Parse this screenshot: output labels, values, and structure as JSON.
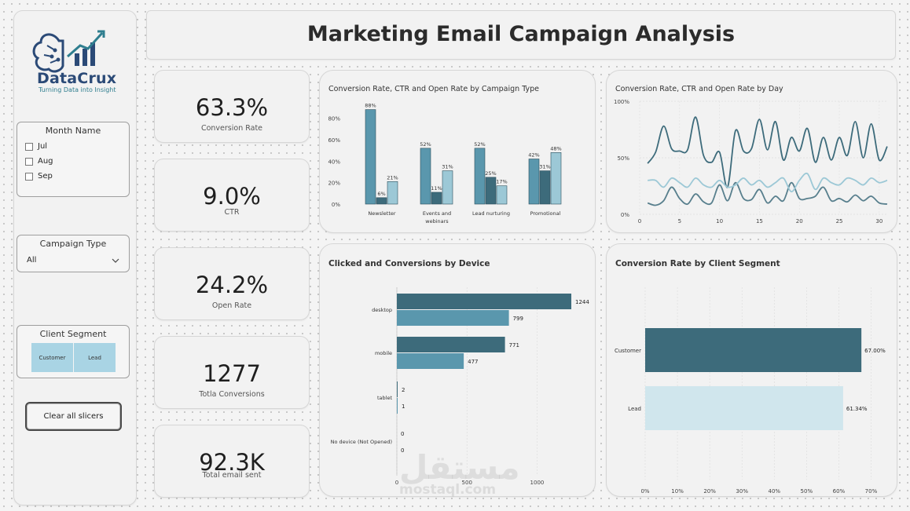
{
  "brand": {
    "name": "DataCrux",
    "tagline": "Turning Data into Insight",
    "logo_icon": "brain-growth-chart-icon"
  },
  "page_title": "Marketing Email Campaign Analysis",
  "colors": {
    "dark": "#3d6b7b",
    "mid": "#5a97ad",
    "light": "#9cc8d6",
    "pale": "#d0e6ed",
    "tile": "#a9d4e4"
  },
  "slicers": {
    "month": {
      "title": "Month Name",
      "options": [
        "Jul",
        "Aug",
        "Sep"
      ]
    },
    "campaign": {
      "title": "Campaign Type",
      "selected": "All"
    },
    "segment": {
      "title": "Client Segment",
      "options": [
        "Customer",
        "Lead"
      ]
    },
    "clear_label": "Clear all slicers"
  },
  "kpis": [
    {
      "value": "63.3%",
      "label": "Conversion Rate"
    },
    {
      "value": "9.0%",
      "label": "CTR"
    },
    {
      "value": "24.2%",
      "label": "Open Rate"
    },
    {
      "value": "1277",
      "label": "Totla Conversions"
    },
    {
      "value": "92.3K",
      "label": "Total email sent"
    }
  ],
  "charts": {
    "campaign": {
      "title": "Conversion Rate, CTR and Open Rate by Campaign Type"
    },
    "daily": {
      "title": "Conversion Rate, CTR and Open Rate by Day"
    },
    "device": {
      "title": "Clicked and Conversions by Device"
    },
    "segment": {
      "title": "Conversion Rate by Client Segment"
    }
  },
  "chart_data": [
    {
      "type": "bar",
      "title": "Conversion Rate, CTR and Open Rate by Campaign Type",
      "categories": [
        "Newsletter",
        "Events and webinars",
        "Lead nurturing",
        "Promotional"
      ],
      "series": [
        {
          "values": [
            88,
            52,
            52,
            42
          ],
          "labels": [
            "88%",
            "52%",
            "52%",
            "42%"
          ]
        },
        {
          "values": [
            6,
            11,
            25,
            31
          ],
          "labels": [
            "6%",
            "11%",
            "25%",
            "31%"
          ]
        },
        {
          "values": [
            21,
            31,
            17,
            48
          ],
          "labels": [
            "21%",
            "31%",
            "17%",
            "48%"
          ]
        }
      ],
      "yticks": [
        "0%",
        "20%",
        "40%",
        "60%",
        "80%"
      ],
      "ylim": [
        0,
        95
      ]
    },
    {
      "type": "line",
      "title": "Conversion Rate, CTR and Open Rate by Day",
      "x": [
        1,
        2,
        3,
        4,
        5,
        6,
        7,
        8,
        9,
        10,
        11,
        12,
        13,
        14,
        15,
        16,
        17,
        18,
        19,
        20,
        21,
        22,
        23,
        24,
        25,
        26,
        27,
        28,
        29,
        30,
        31
      ],
      "series": [
        {
          "values": [
            45,
            55,
            78,
            58,
            56,
            57,
            86,
            52,
            46,
            55,
            24,
            74,
            56,
            58,
            84,
            57,
            82,
            48,
            68,
            56,
            76,
            46,
            68,
            48,
            68,
            52,
            82,
            50,
            80,
            48,
            60
          ]
        },
        {
          "values": [
            10,
            8,
            12,
            24,
            14,
            9,
            18,
            11,
            10,
            26,
            12,
            28,
            14,
            13,
            22,
            10,
            16,
            12,
            28,
            14,
            14,
            16,
            24,
            12,
            14,
            11,
            17,
            12,
            16,
            10,
            9
          ]
        },
        {
          "values": [
            30,
            30,
            24,
            32,
            28,
            24,
            32,
            26,
            24,
            30,
            24,
            26,
            32,
            26,
            30,
            24,
            28,
            32,
            20,
            30,
            36,
            22,
            32,
            28,
            26,
            32,
            30,
            26,
            32,
            28,
            30
          ]
        }
      ],
      "xticks": [
        0,
        5,
        10,
        15,
        20,
        25,
        30
      ],
      "yticks": [
        "0%",
        "50%",
        "100%"
      ],
      "ylim": [
        0,
        100
      ]
    },
    {
      "type": "bar",
      "title": "Clicked and Conversions by Device",
      "categories": [
        "desktop",
        "mobile",
        "tablet",
        "No device (Not Opened)"
      ],
      "series": [
        {
          "values": [
            1244,
            771,
            2,
            0
          ]
        },
        {
          "values": [
            799,
            477,
            1,
            0
          ]
        }
      ],
      "xticks": [
        0,
        500,
        1000
      ],
      "xlim": [
        0,
        1300
      ]
    },
    {
      "type": "bar",
      "title": "Conversion Rate by Client Segment",
      "categories": [
        "Customer",
        "Lead"
      ],
      "values": [
        67.0,
        61.34
      ],
      "labels": [
        "67.00%",
        "61.34%"
      ],
      "xticks": [
        "0%",
        "10%",
        "20%",
        "30%",
        "40%",
        "50%",
        "60%",
        "70%"
      ],
      "xlim": [
        0,
        75
      ]
    }
  ],
  "watermark": {
    "arabic": "مستقل",
    "latin": "mostaql.com"
  }
}
